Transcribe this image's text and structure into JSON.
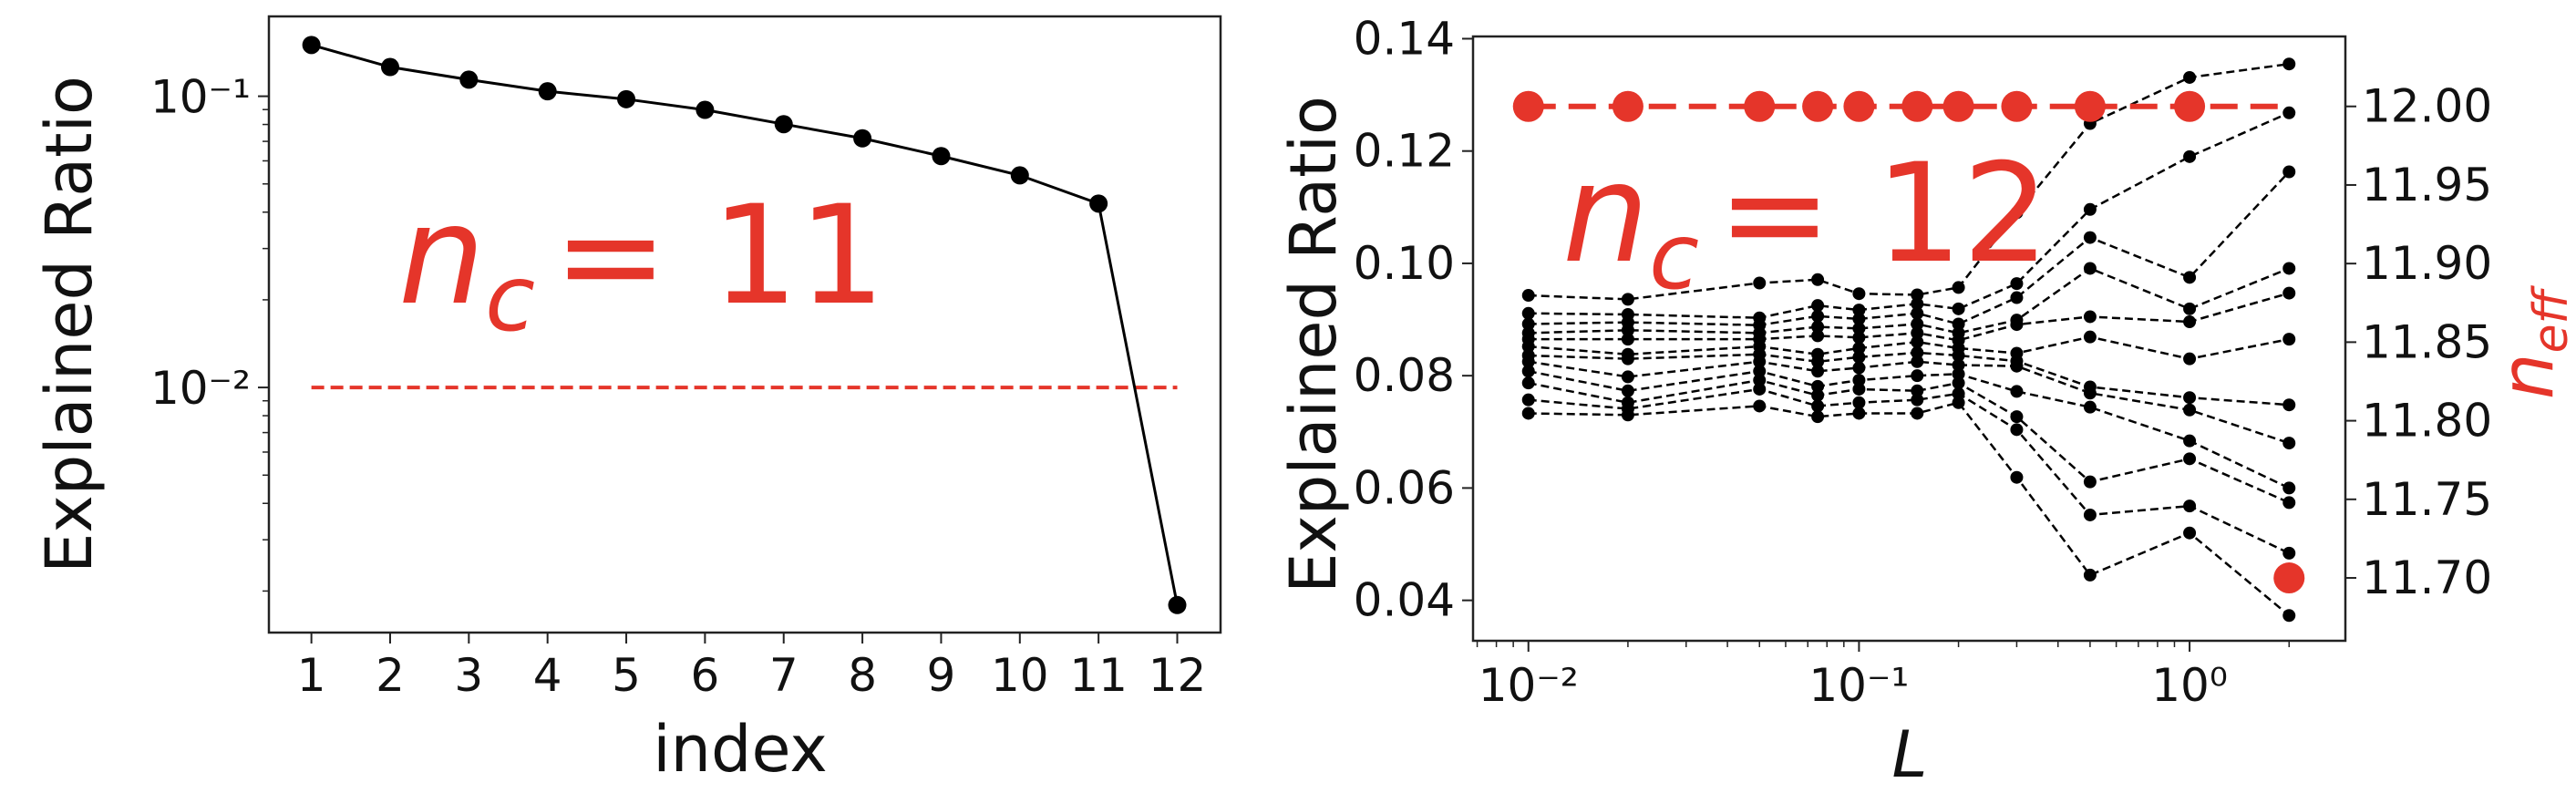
{
  "colors": {
    "red": "#e5352a",
    "black": "#000000"
  },
  "chart_data": [
    {
      "type": "line",
      "xlabel": "index",
      "ylabel": "Explained Ratio",
      "x": [
        1,
        2,
        3,
        4,
        5,
        6,
        7,
        8,
        9,
        10,
        11,
        12
      ],
      "y": [
        0.15,
        0.126,
        0.114,
        0.104,
        0.0977,
        0.0898,
        0.0802,
        0.0717,
        0.0623,
        0.0535,
        0.0428,
        0.00179
      ],
      "yscale": "log",
      "xlim": [
        0.46,
        12.55
      ],
      "ylim": [
        0.00144,
        0.188
      ],
      "xticks": [
        {
          "value": 1,
          "label": "1"
        },
        {
          "value": 2,
          "label": "2"
        },
        {
          "value": 3,
          "label": "3"
        },
        {
          "value": 4,
          "label": "4"
        },
        {
          "value": 5,
          "label": "5"
        },
        {
          "value": 6,
          "label": "6"
        },
        {
          "value": 7,
          "label": "7"
        },
        {
          "value": 8,
          "label": "8"
        },
        {
          "value": 9,
          "label": "9"
        },
        {
          "value": 10,
          "label": "10"
        },
        {
          "value": 11,
          "label": "11"
        },
        {
          "value": 12,
          "label": "12"
        }
      ],
      "yticks": [
        {
          "value": 0.1,
          "label": "10⁻¹"
        },
        {
          "value": 0.01,
          "label": "10⁻²"
        }
      ],
      "threshold": {
        "y": 0.01,
        "x_range": [
          1,
          12
        ],
        "style": "dashed",
        "color": "#e5352a"
      },
      "line_color": "#000000",
      "grid": false,
      "annotation": {
        "symbol": "n",
        "subscript": "c",
        "text": "= 11"
      }
    },
    {
      "type": "line",
      "xlabel": "L",
      "ylabel": "Explained Ratio",
      "y2label": {
        "symbol": "n",
        "subscript": "eff"
      },
      "xscale": "log",
      "x": [
        0.01,
        0.02,
        0.05,
        0.075,
        0.1,
        0.15,
        0.2,
        0.3,
        0.5,
        1,
        2
      ],
      "xlim": [
        0.0068,
        2.96
      ],
      "ylim": [
        0.0328,
        0.1404
      ],
      "y2lim": [
        11.66,
        12.0445
      ],
      "xticks": [
        {
          "value": 0.01,
          "label": "10⁻²"
        },
        {
          "value": 0.1,
          "label": "10⁻¹"
        },
        {
          "value": 1,
          "label": "10⁰"
        }
      ],
      "yticks": [
        {
          "value": 0.04,
          "label": "0.04"
        },
        {
          "value": 0.06,
          "label": "0.06"
        },
        {
          "value": 0.08,
          "label": "0.08"
        },
        {
          "value": 0.1,
          "label": "0.10"
        },
        {
          "value": 0.12,
          "label": "0.12"
        },
        {
          "value": 0.14,
          "label": "0.14"
        }
      ],
      "y2ticks": [
        {
          "value": 11.7,
          "label": "11.70"
        },
        {
          "value": 11.75,
          "label": "11.75"
        },
        {
          "value": 11.8,
          "label": "11.80"
        },
        {
          "value": 11.85,
          "label": "11.85"
        },
        {
          "value": 11.9,
          "label": "11.90"
        },
        {
          "value": 11.95,
          "label": "11.95"
        },
        {
          "value": 12.0,
          "label": "12.00"
        }
      ],
      "series": [
        {
          "values": [
            0.0943,
            0.0936,
            0.0965,
            0.0971,
            0.0946,
            0.0944,
            0.0957,
            0.109,
            0.1249,
            0.1331,
            0.1355
          ]
        },
        {
          "values": [
            0.0911,
            0.0909,
            0.0903,
            0.0925,
            0.0917,
            0.0928,
            0.0919,
            0.0964,
            0.1096,
            0.119,
            0.1268
          ]
        },
        {
          "values": [
            0.0892,
            0.0895,
            0.089,
            0.0906,
            0.0901,
            0.0911,
            0.0892,
            0.0939,
            0.1046,
            0.0975,
            0.1163
          ]
        },
        {
          "values": [
            0.0876,
            0.0881,
            0.0876,
            0.0887,
            0.0884,
            0.0892,
            0.0876,
            0.0899,
            0.0991,
            0.0919,
            0.0991
          ]
        },
        {
          "values": [
            0.0865,
            0.0865,
            0.0865,
            0.0871,
            0.0868,
            0.0876,
            0.0863,
            0.0891,
            0.0905,
            0.0896,
            0.0947
          ]
        },
        {
          "values": [
            0.0852,
            0.0838,
            0.0852,
            0.0838,
            0.0849,
            0.086,
            0.0849,
            0.084,
            0.0869,
            0.083,
            0.0865
          ]
        },
        {
          "values": [
            0.0836,
            0.083,
            0.0838,
            0.0825,
            0.0833,
            0.0841,
            0.0836,
            0.0826,
            0.078,
            0.0761,
            0.0748
          ]
        },
        {
          "values": [
            0.0825,
            0.0798,
            0.0825,
            0.0808,
            0.0814,
            0.0825,
            0.0819,
            0.0817,
            0.0769,
            0.0739,
            0.068
          ]
        },
        {
          "values": [
            0.0808,
            0.0773,
            0.0808,
            0.0781,
            0.0792,
            0.08,
            0.0803,
            0.0772,
            0.0744,
            0.0684,
            0.06
          ]
        },
        {
          "values": [
            0.0787,
            0.0752,
            0.0792,
            0.0765,
            0.0776,
            0.0773,
            0.0787,
            0.0727,
            0.0611,
            0.0652,
            0.0574
          ]
        },
        {
          "values": [
            0.0757,
            0.0741,
            0.0776,
            0.0746,
            0.0752,
            0.0757,
            0.0768,
            0.0704,
            0.0552,
            0.0568,
            0.0484
          ]
        },
        {
          "values": [
            0.0733,
            0.073,
            0.0746,
            0.0727,
            0.0733,
            0.0733,
            0.0752,
            0.0619,
            0.0445,
            0.052,
            0.0373
          ]
        }
      ],
      "series_style": {
        "color": "#000000",
        "line": "dashed",
        "marker": "circle"
      },
      "n_eff": {
        "axis": "right",
        "color": "#e5352a",
        "values": [
          12.0,
          12.0,
          12.0,
          12.0,
          12.0,
          12.0,
          12.0,
          12.0,
          12.0,
          12.0,
          11.7
        ],
        "reference_line": {
          "y": 12.0,
          "style": "dashed"
        }
      },
      "grid": false,
      "annotation": {
        "symbol": "n",
        "subscript": "c",
        "text": "= 12"
      }
    }
  ]
}
